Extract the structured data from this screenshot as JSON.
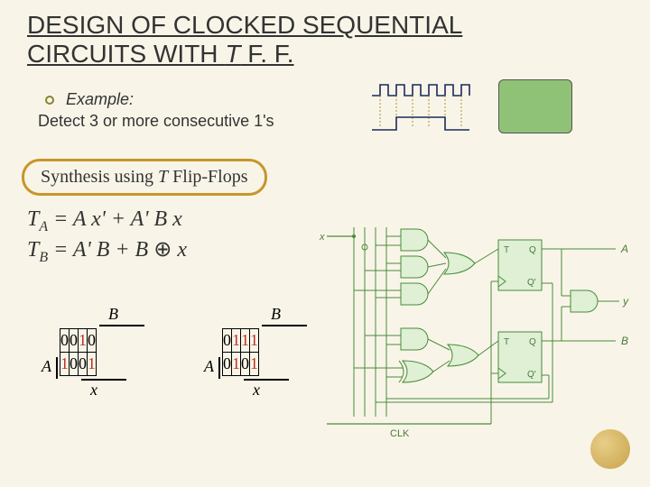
{
  "title_line1": "DESIGN OF CLOCKED SEQUENTIAL",
  "title_line2_a": "CIRCUITS WITH ",
  "title_line2_b": "T",
  "title_line2_c": " F. F.",
  "example_label": "Example:",
  "example_desc": "Detect 3 or more consecutive 1's",
  "synth_a": "Synthesis using ",
  "synth_b": "T",
  "synth_c": " Flip-Flops",
  "eq1_pre": "T",
  "eq1_sub": "A",
  "eq1_post": " = A x' + A' B x",
  "eq2_pre": "T",
  "eq2_sub": "B",
  "eq2_post_a": " = A' B + B ",
  "eq2_xor": "⊕",
  "eq2_post_b": " x",
  "kmap_B": "B",
  "kmap_A": "A",
  "kmap_x": "x",
  "km1": {
    "rows": [
      [
        "0",
        "0",
        "1",
        "0"
      ],
      [
        "1",
        "0",
        "0",
        "1"
      ]
    ],
    "ones": [
      [
        0,
        2
      ],
      [
        1,
        0
      ],
      [
        1,
        3
      ]
    ]
  },
  "km2": {
    "rows": [
      [
        "0",
        "1",
        "1",
        "1"
      ],
      [
        "0",
        "1",
        "0",
        "1"
      ]
    ],
    "ones": [
      [
        0,
        1
      ],
      [
        0,
        2
      ],
      [
        0,
        3
      ],
      [
        1,
        1
      ],
      [
        1,
        3
      ]
    ]
  },
  "circuit": {
    "x_label": "x",
    "clk_label": "CLK",
    "ff_T": "T",
    "ff_Q": "Q",
    "ff_Qn": "Q'",
    "out_A": "A",
    "out_B": "B",
    "out_y": "y",
    "colors": {
      "wire": "#4a8a3a",
      "fill": "#dff0d5",
      "text": "#4a7a3a"
    }
  },
  "waveform": {
    "clk": [
      0,
      1,
      0,
      1,
      0,
      1,
      0,
      1,
      0,
      1,
      0,
      1,
      0
    ],
    "sig": [
      0,
      0,
      0,
      1,
      1,
      1,
      1,
      1,
      1,
      0,
      0,
      0,
      0
    ],
    "line_color": "#1a2a5a",
    "dash_color": "#b09030"
  }
}
